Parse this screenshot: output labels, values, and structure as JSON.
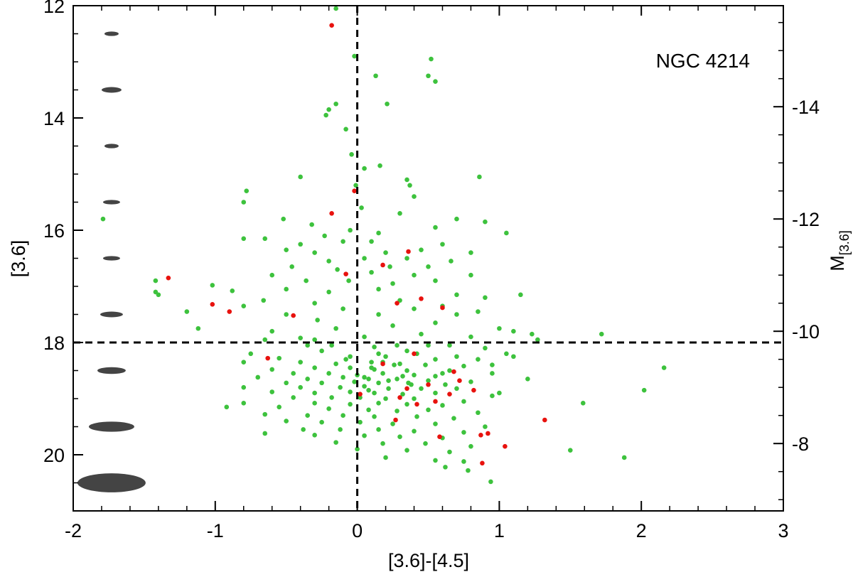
{
  "chart_data": {
    "type": "scatter",
    "title": "",
    "annotation": "NGC 4214",
    "xlabel": "[3.6]-[4.5]",
    "ylabel": "[3.6]",
    "y2label_main": "M",
    "y2label_sub": "[3.6]",
    "xlim": [
      -2,
      3
    ],
    "ylim": [
      21,
      12
    ],
    "y2lim": [
      -6.8,
      -15.8
    ],
    "x_ticks": [
      -2,
      -1,
      0,
      1,
      2,
      3
    ],
    "y_ticks": [
      12,
      14,
      16,
      18,
      20
    ],
    "y2_ticks": [
      -14,
      -12,
      -10,
      -8
    ],
    "reference_lines": {
      "x": 0,
      "y": 18
    },
    "grid": false,
    "colors": {
      "green": "#3dc23d",
      "red": "#e8120e",
      "ellipse": "#444444",
      "axis": "#000000"
    },
    "error_ellipses": [
      {
        "mag": 12.5,
        "sigma_color": 0.05,
        "sigma_mag": 0.04
      },
      {
        "mag": 13.5,
        "sigma_color": 0.07,
        "sigma_mag": 0.05
      },
      {
        "mag": 14.5,
        "sigma_color": 0.05,
        "sigma_mag": 0.04
      },
      {
        "mag": 15.5,
        "sigma_color": 0.06,
        "sigma_mag": 0.04
      },
      {
        "mag": 16.5,
        "sigma_color": 0.06,
        "sigma_mag": 0.04
      },
      {
        "mag": 17.5,
        "sigma_color": 0.08,
        "sigma_mag": 0.05
      },
      {
        "mag": 18.5,
        "sigma_color": 0.1,
        "sigma_mag": 0.06
      },
      {
        "mag": 19.5,
        "sigma_color": 0.16,
        "sigma_mag": 0.09
      },
      {
        "mag": 20.5,
        "sigma_color": 0.24,
        "sigma_mag": 0.17
      }
    ],
    "series": [
      {
        "color": "green",
        "points": [
          [
            -0.15,
            12.05
          ],
          [
            -0.02,
            12.9
          ],
          [
            0.52,
            12.95
          ],
          [
            0.13,
            13.25
          ],
          [
            0.5,
            13.25
          ],
          [
            0.55,
            13.35
          ],
          [
            -0.15,
            13.75
          ],
          [
            0.21,
            13.75
          ],
          [
            -0.2,
            13.85
          ],
          [
            -0.22,
            13.95
          ],
          [
            -0.08,
            14.2
          ],
          [
            -0.04,
            14.65
          ],
          [
            0.16,
            14.85
          ],
          [
            0.05,
            14.9
          ],
          [
            -0.4,
            15.05
          ],
          [
            0.35,
            15.1
          ],
          [
            0.86,
            15.05
          ],
          [
            -0.01,
            15.2
          ],
          [
            0.37,
            15.2
          ],
          [
            -0.78,
            15.3
          ],
          [
            0.4,
            15.4
          ],
          [
            -0.8,
            15.5
          ],
          [
            0.03,
            15.6
          ],
          [
            0.3,
            15.7
          ],
          [
            -1.79,
            15.8
          ],
          [
            -0.52,
            15.8
          ],
          [
            0.7,
            15.8
          ],
          [
            0.9,
            15.85
          ],
          [
            -0.32,
            15.9
          ],
          [
            0.55,
            15.95
          ],
          [
            -0.05,
            16.0
          ],
          [
            -0.23,
            16.1
          ],
          [
            0.15,
            16.05
          ],
          [
            -0.8,
            16.15
          ],
          [
            -0.65,
            16.15
          ],
          [
            1.05,
            16.05
          ],
          [
            -0.4,
            16.25
          ],
          [
            -0.1,
            16.2
          ],
          [
            0.1,
            16.2
          ],
          [
            0.6,
            16.25
          ],
          [
            -0.5,
            16.35
          ],
          [
            -0.3,
            16.4
          ],
          [
            0.2,
            16.4
          ],
          [
            0.45,
            16.35
          ],
          [
            0.8,
            16.4
          ],
          [
            -0.2,
            16.55
          ],
          [
            0.05,
            16.5
          ],
          [
            0.35,
            16.5
          ],
          [
            0.66,
            16.55
          ],
          [
            -0.46,
            16.65
          ],
          [
            -0.14,
            16.7
          ],
          [
            0.23,
            16.65
          ],
          [
            0.5,
            16.65
          ],
          [
            -1.42,
            16.9
          ],
          [
            -0.6,
            16.8
          ],
          [
            0.1,
            16.75
          ],
          [
            0.4,
            16.8
          ],
          [
            0.8,
            16.8
          ],
          [
            -1.02,
            16.98
          ],
          [
            -0.36,
            16.9
          ],
          [
            -0.06,
            16.9
          ],
          [
            0.25,
            16.95
          ],
          [
            0.55,
            16.9
          ],
          [
            -1.42,
            17.1
          ],
          [
            -0.88,
            17.08
          ],
          [
            -0.5,
            17.05
          ],
          [
            -0.2,
            17.1
          ],
          [
            0.15,
            17.05
          ],
          [
            0.7,
            17.15
          ],
          [
            0.9,
            17.2
          ],
          [
            1.15,
            17.15
          ],
          [
            -1.4,
            17.15
          ],
          [
            -0.66,
            17.25
          ],
          [
            -0.3,
            17.3
          ],
          [
            0.3,
            17.25
          ],
          [
            0.6,
            17.35
          ],
          [
            -0.8,
            17.35
          ],
          [
            -0.1,
            17.4
          ],
          [
            0.4,
            17.4
          ],
          [
            0.85,
            17.45
          ],
          [
            -1.2,
            17.45
          ],
          [
            -0.5,
            17.5
          ],
          [
            0.15,
            17.5
          ],
          [
            0.7,
            17.5
          ],
          [
            -1.12,
            17.75
          ],
          [
            -0.28,
            17.6
          ],
          [
            0.55,
            17.65
          ],
          [
            1.0,
            17.75
          ],
          [
            1.1,
            17.8
          ],
          [
            1.72,
            17.85
          ],
          [
            -0.6,
            17.8
          ],
          [
            -0.15,
            17.75
          ],
          [
            0.25,
            17.7
          ],
          [
            0.8,
            17.9
          ],
          [
            1.23,
            17.85
          ],
          [
            1.27,
            17.95
          ],
          [
            -0.4,
            17.92
          ],
          [
            0.05,
            17.9
          ],
          [
            0.45,
            17.85
          ],
          [
            -0.35,
            18.05
          ],
          [
            0.12,
            18.08
          ],
          [
            0.65,
            18.05
          ],
          [
            0.9,
            18.1
          ],
          [
            -0.75,
            18.2
          ],
          [
            -0.25,
            18.15
          ],
          [
            0.35,
            18.15
          ],
          [
            1.05,
            18.2
          ],
          [
            1.1,
            18.25
          ],
          [
            -0.55,
            18.28
          ],
          [
            -0.05,
            18.25
          ],
          [
            0.2,
            18.25
          ],
          [
            0.55,
            18.3
          ],
          [
            0.85,
            18.3
          ],
          [
            -0.8,
            18.35
          ],
          [
            -0.4,
            18.35
          ],
          [
            -0.15,
            18.38
          ],
          [
            0.1,
            18.35
          ],
          [
            0.3,
            18.38
          ],
          [
            0.48,
            18.4
          ],
          [
            0.75,
            18.42
          ],
          [
            2.16,
            18.45
          ],
          [
            -0.6,
            18.48
          ],
          [
            -0.3,
            18.45
          ],
          [
            -0.05,
            18.45
          ],
          [
            0.12,
            18.48
          ],
          [
            0.35,
            18.5
          ],
          [
            0.65,
            18.5
          ],
          [
            0.95,
            18.55
          ],
          [
            -0.45,
            18.55
          ],
          [
            -0.2,
            18.55
          ],
          [
            0.0,
            18.58
          ],
          [
            0.18,
            18.55
          ],
          [
            0.4,
            18.58
          ],
          [
            0.55,
            18.6
          ],
          [
            -0.7,
            18.62
          ],
          [
            -0.35,
            18.65
          ],
          [
            -0.1,
            18.62
          ],
          [
            0.08,
            18.65
          ],
          [
            0.28,
            18.65
          ],
          [
            0.5,
            18.68
          ],
          [
            0.8,
            18.7
          ],
          [
            1.2,
            18.65
          ],
          [
            -0.5,
            18.72
          ],
          [
            -0.25,
            18.72
          ],
          [
            -0.02,
            18.7
          ],
          [
            0.15,
            18.72
          ],
          [
            0.38,
            18.75
          ],
          [
            0.62,
            18.75
          ],
          [
            -0.8,
            18.8
          ],
          [
            -0.4,
            18.8
          ],
          [
            -0.12,
            18.8
          ],
          [
            0.05,
            18.78
          ],
          [
            0.22,
            18.82
          ],
          [
            0.45,
            18.82
          ],
          [
            0.7,
            18.82
          ],
          [
            2.02,
            18.85
          ],
          [
            -0.6,
            18.88
          ],
          [
            -0.3,
            18.9
          ],
          [
            -0.05,
            18.88
          ],
          [
            0.12,
            18.9
          ],
          [
            0.32,
            18.92
          ],
          [
            0.55,
            18.9
          ],
          [
            0.95,
            18.95
          ],
          [
            -0.45,
            18.98
          ],
          [
            -0.18,
            18.98
          ],
          [
            0.02,
            18.98
          ],
          [
            0.2,
            19.0
          ],
          [
            0.4,
            19.0
          ],
          [
            0.75,
            19.05
          ],
          [
            -0.8,
            19.08
          ],
          [
            -0.3,
            19.08
          ],
          [
            -0.05,
            19.1
          ],
          [
            0.15,
            19.08
          ],
          [
            0.35,
            19.1
          ],
          [
            0.6,
            19.12
          ],
          [
            1.59,
            19.08
          ],
          [
            -0.92,
            19.15
          ],
          [
            -0.55,
            19.15
          ],
          [
            -0.2,
            19.18
          ],
          [
            0.08,
            19.2
          ],
          [
            0.28,
            19.22
          ],
          [
            0.5,
            19.2
          ],
          [
            0.85,
            19.25
          ],
          [
            -0.65,
            19.28
          ],
          [
            -0.35,
            19.3
          ],
          [
            -0.1,
            19.3
          ],
          [
            0.12,
            19.32
          ],
          [
            0.42,
            19.32
          ],
          [
            0.68,
            19.35
          ],
          [
            -0.5,
            19.4
          ],
          [
            -0.25,
            19.42
          ],
          [
            0.02,
            19.42
          ],
          [
            0.25,
            19.45
          ],
          [
            0.55,
            19.45
          ],
          [
            0.9,
            19.5
          ],
          [
            -0.38,
            19.55
          ],
          [
            -0.12,
            19.55
          ],
          [
            0.15,
            19.55
          ],
          [
            0.4,
            19.58
          ],
          [
            0.75,
            19.6
          ],
          [
            -0.65,
            19.62
          ],
          [
            -0.3,
            19.65
          ],
          [
            0.05,
            19.66
          ],
          [
            0.3,
            19.68
          ],
          [
            0.6,
            19.7
          ],
          [
            -0.15,
            19.78
          ],
          [
            0.18,
            19.8
          ],
          [
            0.48,
            19.8
          ],
          [
            0.8,
            19.85
          ],
          [
            0.0,
            19.9
          ],
          [
            0.35,
            19.92
          ],
          [
            0.65,
            19.95
          ],
          [
            1.5,
            19.92
          ],
          [
            0.2,
            20.05
          ],
          [
            0.55,
            20.1
          ],
          [
            0.75,
            20.12
          ],
          [
            1.88,
            20.05
          ],
          [
            0.62,
            20.22
          ],
          [
            0.78,
            20.28
          ],
          [
            0.94,
            20.48
          ],
          [
            -0.3,
            17.95
          ],
          [
            0.15,
            18.2
          ],
          [
            0.28,
            18.05
          ],
          [
            0.6,
            18.55
          ],
          [
            0.1,
            18.45
          ],
          [
            0.05,
            18.62
          ],
          [
            0.22,
            18.68
          ],
          [
            0.32,
            18.6
          ],
          [
            0.18,
            18.35
          ],
          [
            0.42,
            18.2
          ],
          [
            -0.08,
            18.3
          ],
          [
            0.26,
            18.4
          ],
          [
            0.36,
            18.72
          ],
          [
            0.08,
            18.85
          ],
          [
            -0.18,
            18.05
          ],
          [
            0.5,
            18.05
          ],
          [
            0.7,
            18.25
          ],
          [
            -0.65,
            17.95
          ],
          [
            0.95,
            18.4
          ],
          [
            1.0,
            18.9
          ]
        ]
      },
      {
        "color": "red",
        "points": [
          [
            -0.18,
            12.35
          ],
          [
            -0.02,
            15.3
          ],
          [
            -0.18,
            15.7
          ],
          [
            -1.33,
            16.85
          ],
          [
            0.36,
            16.38
          ],
          [
            -0.08,
            16.78
          ],
          [
            0.18,
            16.62
          ],
          [
            0.45,
            17.22
          ],
          [
            -1.02,
            17.32
          ],
          [
            -0.9,
            17.45
          ],
          [
            0.6,
            17.38
          ],
          [
            -0.45,
            17.52
          ],
          [
            0.28,
            17.3
          ],
          [
            -0.63,
            18.28
          ],
          [
            0.4,
            18.2
          ],
          [
            0.68,
            18.52
          ],
          [
            0.72,
            18.68
          ],
          [
            0.35,
            18.82
          ],
          [
            0.5,
            18.75
          ],
          [
            0.3,
            18.98
          ],
          [
            0.55,
            19.05
          ],
          [
            0.65,
            18.92
          ],
          [
            0.82,
            18.85
          ],
          [
            1.32,
            19.38
          ],
          [
            0.87,
            19.65
          ],
          [
            0.92,
            19.62
          ],
          [
            1.04,
            19.85
          ],
          [
            0.58,
            19.68
          ],
          [
            0.88,
            20.15
          ],
          [
            0.27,
            19.38
          ],
          [
            0.42,
            19.1
          ],
          [
            0.18,
            18.38
          ],
          [
            0.02,
            18.92
          ]
        ]
      }
    ]
  }
}
